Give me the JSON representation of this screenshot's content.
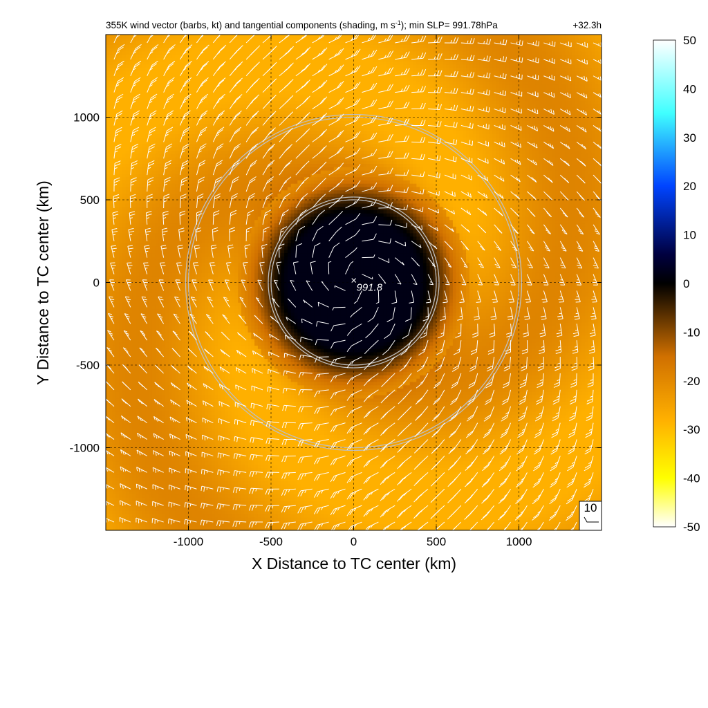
{
  "chart_data": {
    "type": "heatmap",
    "title": "355K wind vector (barbs, kt) and tangential components (shading, m s",
    "title_superscript": "-1",
    "title_suffix": "); min SLP= 991.78hPa",
    "time_label": "+32.3h",
    "xlabel": "X Distance to TC center (km)",
    "ylabel": "Y Distance to TC center (km)",
    "xlim": [
      -1500,
      1500
    ],
    "ylim": [
      -1500,
      1500
    ],
    "x_ticks": [
      -1000,
      -500,
      0,
      500,
      1000
    ],
    "y_ticks": [
      -1000,
      -500,
      0,
      500,
      1000
    ],
    "x_tick_labels": [
      "-1000",
      "-500",
      "0",
      "500",
      "1000"
    ],
    "y_tick_labels": [
      "-1000",
      "-500",
      "0",
      "500",
      "1000"
    ],
    "grid": true,
    "colorbar": {
      "min": -50,
      "max": 50,
      "ticks": [
        50,
        40,
        30,
        20,
        10,
        0,
        -10,
        -20,
        -30,
        -40,
        -50
      ],
      "tick_labels": [
        "50",
        "40",
        "30",
        "20",
        "10",
        "0",
        "-10",
        "-20",
        "-30",
        "-40",
        "-50"
      ],
      "colors": [
        "#ffffff",
        "#40ffff",
        "#0044ff",
        "#000040",
        "#000000",
        "#d07000",
        "#ffb000",
        "#ffff00",
        "#ffffff"
      ],
      "color_positions": [
        50,
        35,
        20,
        6,
        0,
        -15,
        -28,
        -40,
        -50
      ]
    },
    "range_rings_km": [
      500,
      1000
    ],
    "center": {
      "x": 0,
      "y": 0,
      "marker": "×",
      "label": "991.8"
    },
    "barb_legend": {
      "value": 10,
      "label": "10"
    },
    "barb_spacing_km": 100
  }
}
